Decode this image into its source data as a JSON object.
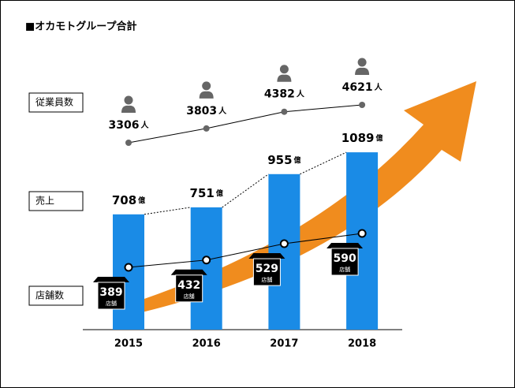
{
  "chart_data": {
    "type": "combo",
    "title": "■オカモトグループ合計",
    "categories": [
      "2015",
      "2016",
      "2017",
      "2018"
    ],
    "series": [
      {
        "name": "従業員数",
        "unit": "人",
        "values": [
          3306,
          3803,
          4382,
          4621
        ],
        "color": "#666666"
      },
      {
        "name": "売上",
        "unit": "億",
        "values": [
          708,
          751,
          955,
          1089
        ],
        "color": "#1a8be6"
      },
      {
        "name": "店舗数",
        "unit": "店舗",
        "values": [
          389,
          432,
          529,
          590
        ],
        "color": "#000000"
      }
    ]
  }
}
